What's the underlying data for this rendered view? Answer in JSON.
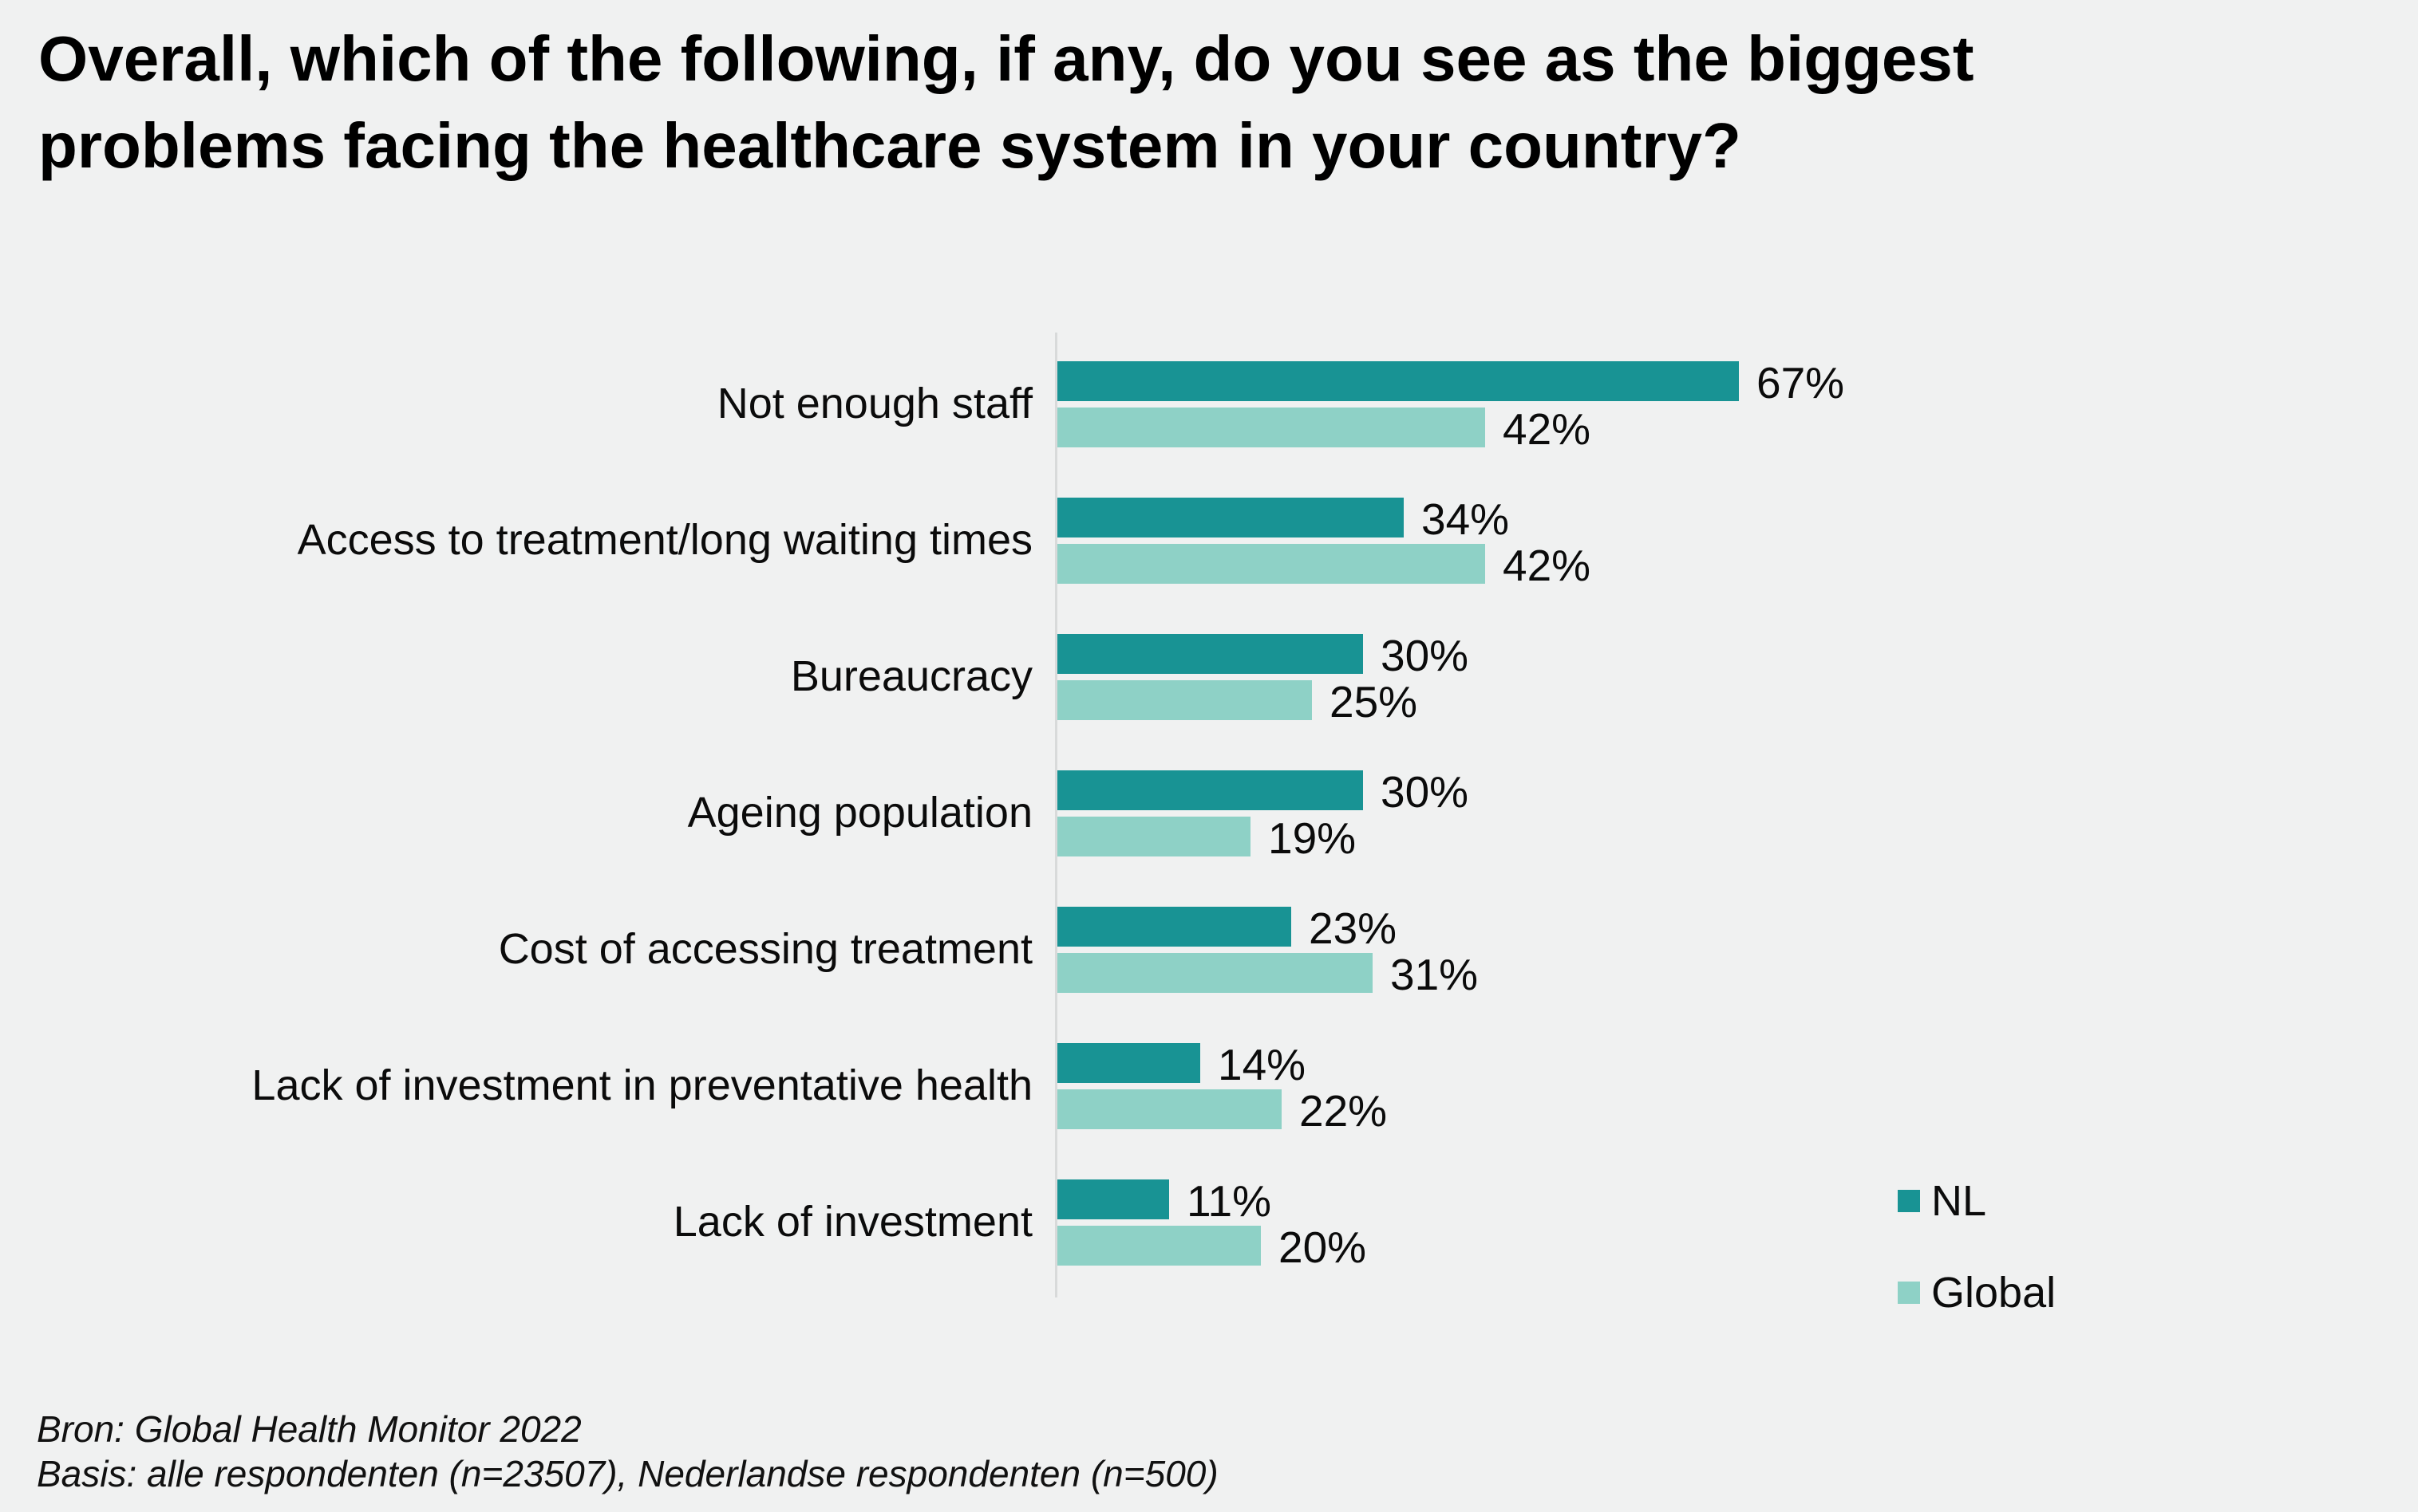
{
  "title": "Overall, which of the following, if any, do you see as the biggest\nproblems facing the healthcare system in your country?",
  "chart_data": {
    "type": "bar",
    "orientation": "horizontal",
    "title": "Overall, which of the following, if any, do you see as the biggest problems facing the healthcare system in your country?",
    "categories": [
      "Not enough staff",
      "Access to treatment/long waiting times",
      "Bureaucracy",
      "Ageing population",
      "Cost of accessing treatment",
      "Lack of investment in preventative health",
      "Lack of investment"
    ],
    "series": [
      {
        "name": "NL",
        "color": "#189394",
        "values": [
          67,
          34,
          30,
          30,
          23,
          14,
          11
        ]
      },
      {
        "name": "Global",
        "color": "#8ED1C6",
        "values": [
          42,
          42,
          25,
          19,
          31,
          22,
          20
        ]
      }
    ],
    "data_label_suffix": "%",
    "axis_max": 100,
    "grid": false,
    "data_labels": true,
    "legend_position": "bottom-right"
  },
  "legend": {
    "items": [
      {
        "label": "NL",
        "color": "#189394"
      },
      {
        "label": "Global",
        "color": "#8ED1C6"
      }
    ]
  },
  "footer": {
    "source": "Bron: Global Health Monitor 2022",
    "basis": "Basis: alle respondenten (n=23507), Nederlandse respondenten (n=500)"
  },
  "colors": {
    "background": "#F0F1F1",
    "bar_nl": "#189394",
    "bar_global": "#8ED1C6",
    "axis_line": "#D8DADA",
    "text": "#0B0B0B"
  }
}
